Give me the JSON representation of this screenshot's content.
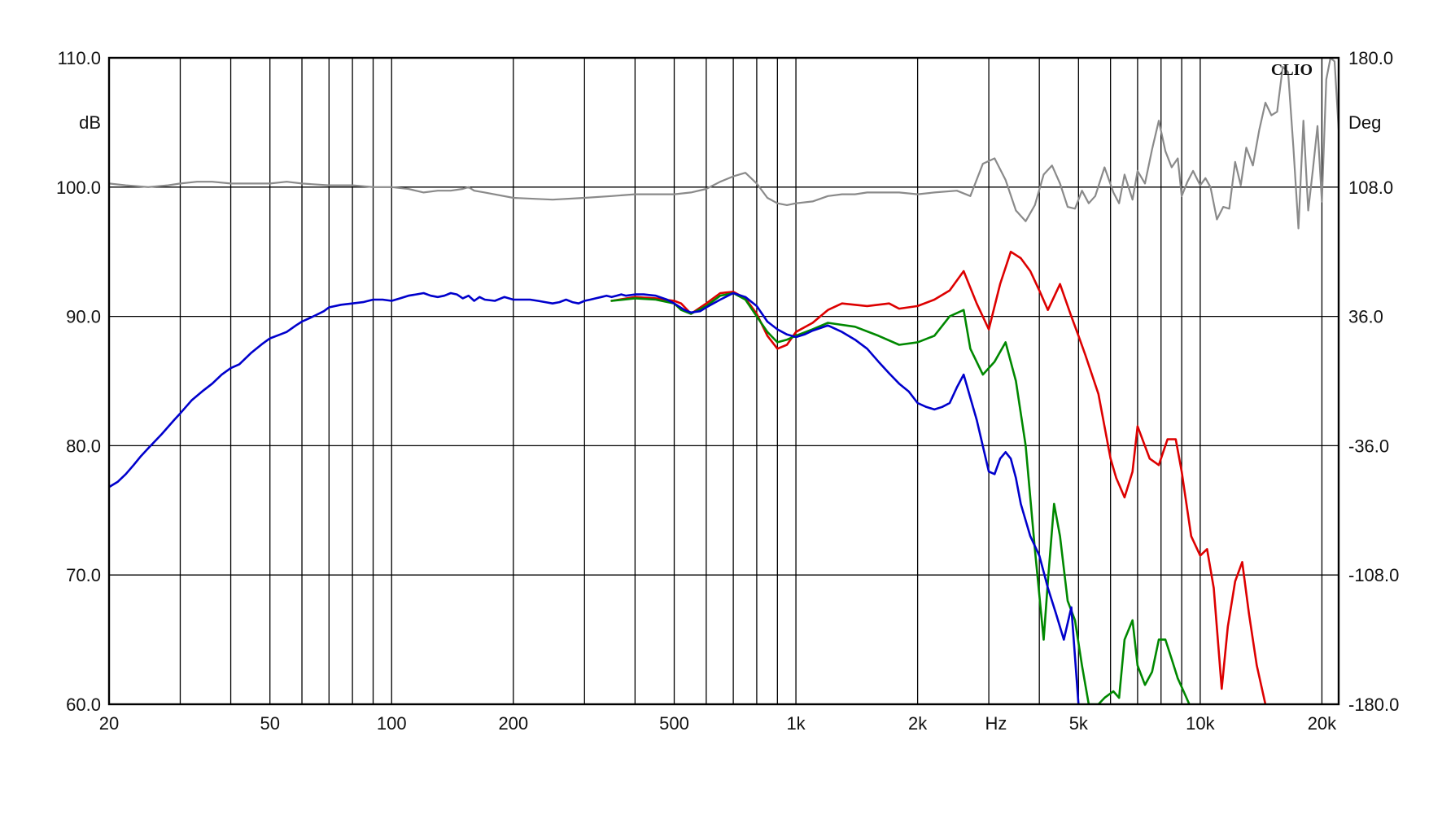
{
  "chart_data": {
    "type": "line",
    "brand": "CLIO",
    "title": "",
    "xlabel": "Hz",
    "ylabel_left": "dB",
    "ylabel_right": "Deg",
    "x_scale": "log",
    "xlim": [
      20,
      22000
    ],
    "ylim_left": [
      60,
      110
    ],
    "ylim_right": [
      -180,
      180
    ],
    "grid": true,
    "x_ticks": [
      {
        "value": 20,
        "label": "20"
      },
      {
        "value": 50,
        "label": "50"
      },
      {
        "value": 100,
        "label": "100"
      },
      {
        "value": 200,
        "label": "200"
      },
      {
        "value": 500,
        "label": "500"
      },
      {
        "value": 1000,
        "label": "1k"
      },
      {
        "value": 2000,
        "label": "2k"
      },
      {
        "value": 5000,
        "label": "5k"
      },
      {
        "value": 10000,
        "label": "10k"
      },
      {
        "value": 20000,
        "label": "20k"
      }
    ],
    "y_ticks_left": [
      "110.0",
      "100.0",
      "90.0",
      "80.0",
      "70.0",
      "60.0"
    ],
    "y_ticks_right": [
      "180.0",
      "108.0",
      "36.0",
      "-36.0",
      "-108.0",
      "-180.0"
    ],
    "series": [
      {
        "color": "#8a8a8a",
        "axis": "right",
        "x": [
          20,
          22,
          25,
          28,
          30,
          33,
          36,
          40,
          45,
          50,
          55,
          60,
          70,
          80,
          90,
          100,
          110,
          120,
          130,
          140,
          150,
          155,
          160,
          170,
          200,
          250,
          300,
          350,
          400,
          450,
          500,
          550,
          600,
          650,
          700,
          750,
          800,
          850,
          900,
          950,
          1000,
          1100,
          1200,
          1300,
          1400,
          1500,
          1600,
          1800,
          2000,
          2200,
          2500,
          2700,
          2900,
          3100,
          3300,
          3500,
          3700,
          3900,
          4100,
          4300,
          4500,
          4700,
          4900,
          5100,
          5300,
          5500,
          5800,
          6100,
          6300,
          6500,
          6800,
          7000,
          7300,
          7600,
          7900,
          8200,
          8500,
          8800,
          9000,
          9300,
          9600,
          10000,
          10300,
          10600,
          11000,
          11400,
          11800,
          12200,
          12600,
          13000,
          13500,
          14000,
          14500,
          15000,
          15500,
          16000,
          16500,
          17000,
          17500,
          18000,
          18500,
          19000,
          19500,
          20000,
          20500,
          21000,
          21500,
          22000
        ],
        "values": [
          110,
          109,
          108,
          109,
          110,
          111,
          111,
          110,
          110,
          110,
          111,
          110,
          109,
          109,
          108,
          108,
          107,
          105,
          106,
          106,
          107,
          108,
          106,
          105,
          102,
          101,
          102,
          103,
          104,
          104,
          104,
          105,
          107,
          111,
          114,
          116,
          110,
          102,
          99,
          98,
          99,
          100,
          103,
          104,
          104,
          105,
          105,
          105,
          104,
          105,
          106,
          103,
          121,
          124,
          112,
          95,
          89,
          98,
          115,
          120,
          110,
          97,
          96,
          106,
          99,
          103,
          119,
          105,
          99,
          115,
          101,
          117,
          110,
          129,
          145,
          128,
          119,
          124,
          103,
          111,
          117,
          109,
          113,
          108,
          90,
          97,
          96,
          122,
          109,
          130,
          120,
          140,
          155,
          148,
          150,
          175,
          172,
          130,
          85,
          145,
          95,
          118,
          142,
          100,
          168,
          180,
          178,
          140
        ]
      },
      {
        "color": "#dd0000",
        "axis": "left",
        "x": [
          350,
          400,
          450,
          500,
          520,
          550,
          600,
          650,
          700,
          750,
          800,
          850,
          900,
          950,
          1000,
          1100,
          1200,
          1300,
          1500,
          1700,
          1800,
          2000,
          2200,
          2400,
          2600,
          2800,
          3000,
          3200,
          3400,
          3600,
          3800,
          4000,
          4200,
          4500,
          4800,
          5000,
          5200,
          5600,
          6000,
          6200,
          6500,
          6800,
          7000,
          7500,
          7900,
          8300,
          8700,
          9000,
          9500,
          10000,
          10400,
          10800,
          11300,
          11700,
          12200,
          12700,
          13200,
          13800,
          14500
        ],
        "values": [
          91.2,
          91.5,
          91.4,
          91.2,
          91.0,
          90.2,
          91.0,
          91.8,
          91.9,
          91.4,
          90.2,
          88.5,
          87.5,
          87.8,
          88.8,
          89.5,
          90.5,
          91.0,
          90.8,
          91.0,
          90.6,
          90.8,
          91.3,
          92.0,
          93.5,
          91.0,
          89.0,
          92.5,
          95.0,
          94.5,
          93.5,
          92.0,
          90.5,
          92.5,
          90.0,
          88.5,
          87.0,
          84.0,
          79.0,
          77.5,
          76.0,
          78.0,
          81.5,
          79.0,
          78.5,
          80.5,
          80.5,
          78.0,
          73.0,
          71.5,
          72.0,
          69.0,
          61.2,
          66.0,
          69.5,
          71.0,
          67.0,
          63.0,
          60.0
        ]
      },
      {
        "color": "#008800",
        "axis": "left",
        "x": [
          350,
          400,
          450,
          500,
          520,
          550,
          600,
          650,
          700,
          750,
          800,
          850,
          900,
          950,
          1000,
          1100,
          1200,
          1400,
          1600,
          1800,
          2000,
          2200,
          2400,
          2600,
          2700,
          2900,
          3100,
          3300,
          3500,
          3700,
          3900,
          4100,
          4200,
          4350,
          4500,
          4700,
          4900,
          5100,
          5300,
          5600,
          5800,
          6100,
          6300,
          6500,
          6800,
          7000,
          7300,
          7600,
          7900,
          8200,
          8500,
          8800,
          9100,
          9400
        ],
        "values": [
          91.2,
          91.4,
          91.3,
          91.0,
          90.5,
          90.2,
          90.8,
          91.6,
          91.8,
          91.3,
          90.0,
          88.8,
          88.0,
          88.2,
          88.5,
          89.0,
          89.5,
          89.2,
          88.5,
          87.8,
          88.0,
          88.5,
          90.0,
          90.5,
          87.5,
          85.5,
          86.5,
          88.0,
          85.0,
          80.0,
          72.0,
          65.0,
          69.5,
          75.5,
          73.0,
          68.0,
          66.5,
          63.0,
          60.0,
          60.0,
          60.5,
          61.0,
          60.5,
          65.0,
          66.5,
          63.0,
          61.5,
          62.5,
          65.0,
          65.0,
          63.5,
          62.0,
          61.0,
          60.0
        ]
      },
      {
        "color": "#0000cc",
        "axis": "left",
        "x": [
          20,
          21,
          22,
          23,
          24,
          25,
          27,
          29,
          30,
          32,
          34,
          36,
          38,
          40,
          42,
          45,
          48,
          50,
          53,
          55,
          58,
          60,
          63,
          65,
          68,
          70,
          75,
          80,
          85,
          90,
          95,
          100,
          105,
          110,
          115,
          120,
          125,
          130,
          135,
          140,
          145,
          150,
          155,
          160,
          165,
          170,
          180,
          190,
          200,
          210,
          220,
          230,
          240,
          250,
          260,
          270,
          280,
          290,
          300,
          310,
          320,
          330,
          340,
          350,
          360,
          370,
          380,
          400,
          420,
          450,
          480,
          500,
          530,
          550,
          580,
          600,
          650,
          700,
          750,
          800,
          850,
          900,
          950,
          1000,
          1050,
          1100,
          1150,
          1200,
          1300,
          1400,
          1500,
          1600,
          1700,
          1800,
          1900,
          2000,
          2100,
          2200,
          2300,
          2400,
          2500,
          2600,
          2800,
          3000,
          3100,
          3200,
          3300,
          3400,
          3500,
          3600,
          3800,
          4000,
          4200,
          4400,
          4600,
          4800,
          5000
        ],
        "values": [
          76.8,
          77.2,
          77.8,
          78.5,
          79.2,
          79.8,
          80.9,
          82.0,
          82.5,
          83.5,
          84.2,
          84.8,
          85.5,
          86.0,
          86.3,
          87.2,
          87.9,
          88.3,
          88.6,
          88.8,
          89.3,
          89.6,
          89.9,
          90.1,
          90.4,
          90.7,
          90.9,
          91.0,
          91.1,
          91.3,
          91.3,
          91.2,
          91.4,
          91.6,
          91.7,
          91.8,
          91.6,
          91.5,
          91.6,
          91.8,
          91.7,
          91.4,
          91.6,
          91.2,
          91.5,
          91.3,
          91.2,
          91.5,
          91.3,
          91.3,
          91.3,
          91.2,
          91.1,
          91.0,
          91.1,
          91.3,
          91.1,
          91.0,
          91.2,
          91.3,
          91.4,
          91.5,
          91.6,
          91.5,
          91.6,
          91.7,
          91.6,
          91.7,
          91.7,
          91.6,
          91.3,
          91.0,
          90.5,
          90.3,
          90.4,
          90.7,
          91.3,
          91.8,
          91.5,
          90.8,
          89.6,
          89.0,
          88.6,
          88.4,
          88.6,
          88.9,
          89.1,
          89.3,
          88.8,
          88.2,
          87.5,
          86.5,
          85.6,
          84.8,
          84.2,
          83.3,
          83.0,
          82.8,
          83.0,
          83.3,
          84.5,
          85.5,
          82.0,
          78.0,
          77.8,
          79.0,
          79.5,
          79.0,
          77.5,
          75.5,
          73.0,
          71.5,
          69.0,
          67.0,
          65.0,
          67.5,
          60.0
        ]
      }
    ]
  }
}
